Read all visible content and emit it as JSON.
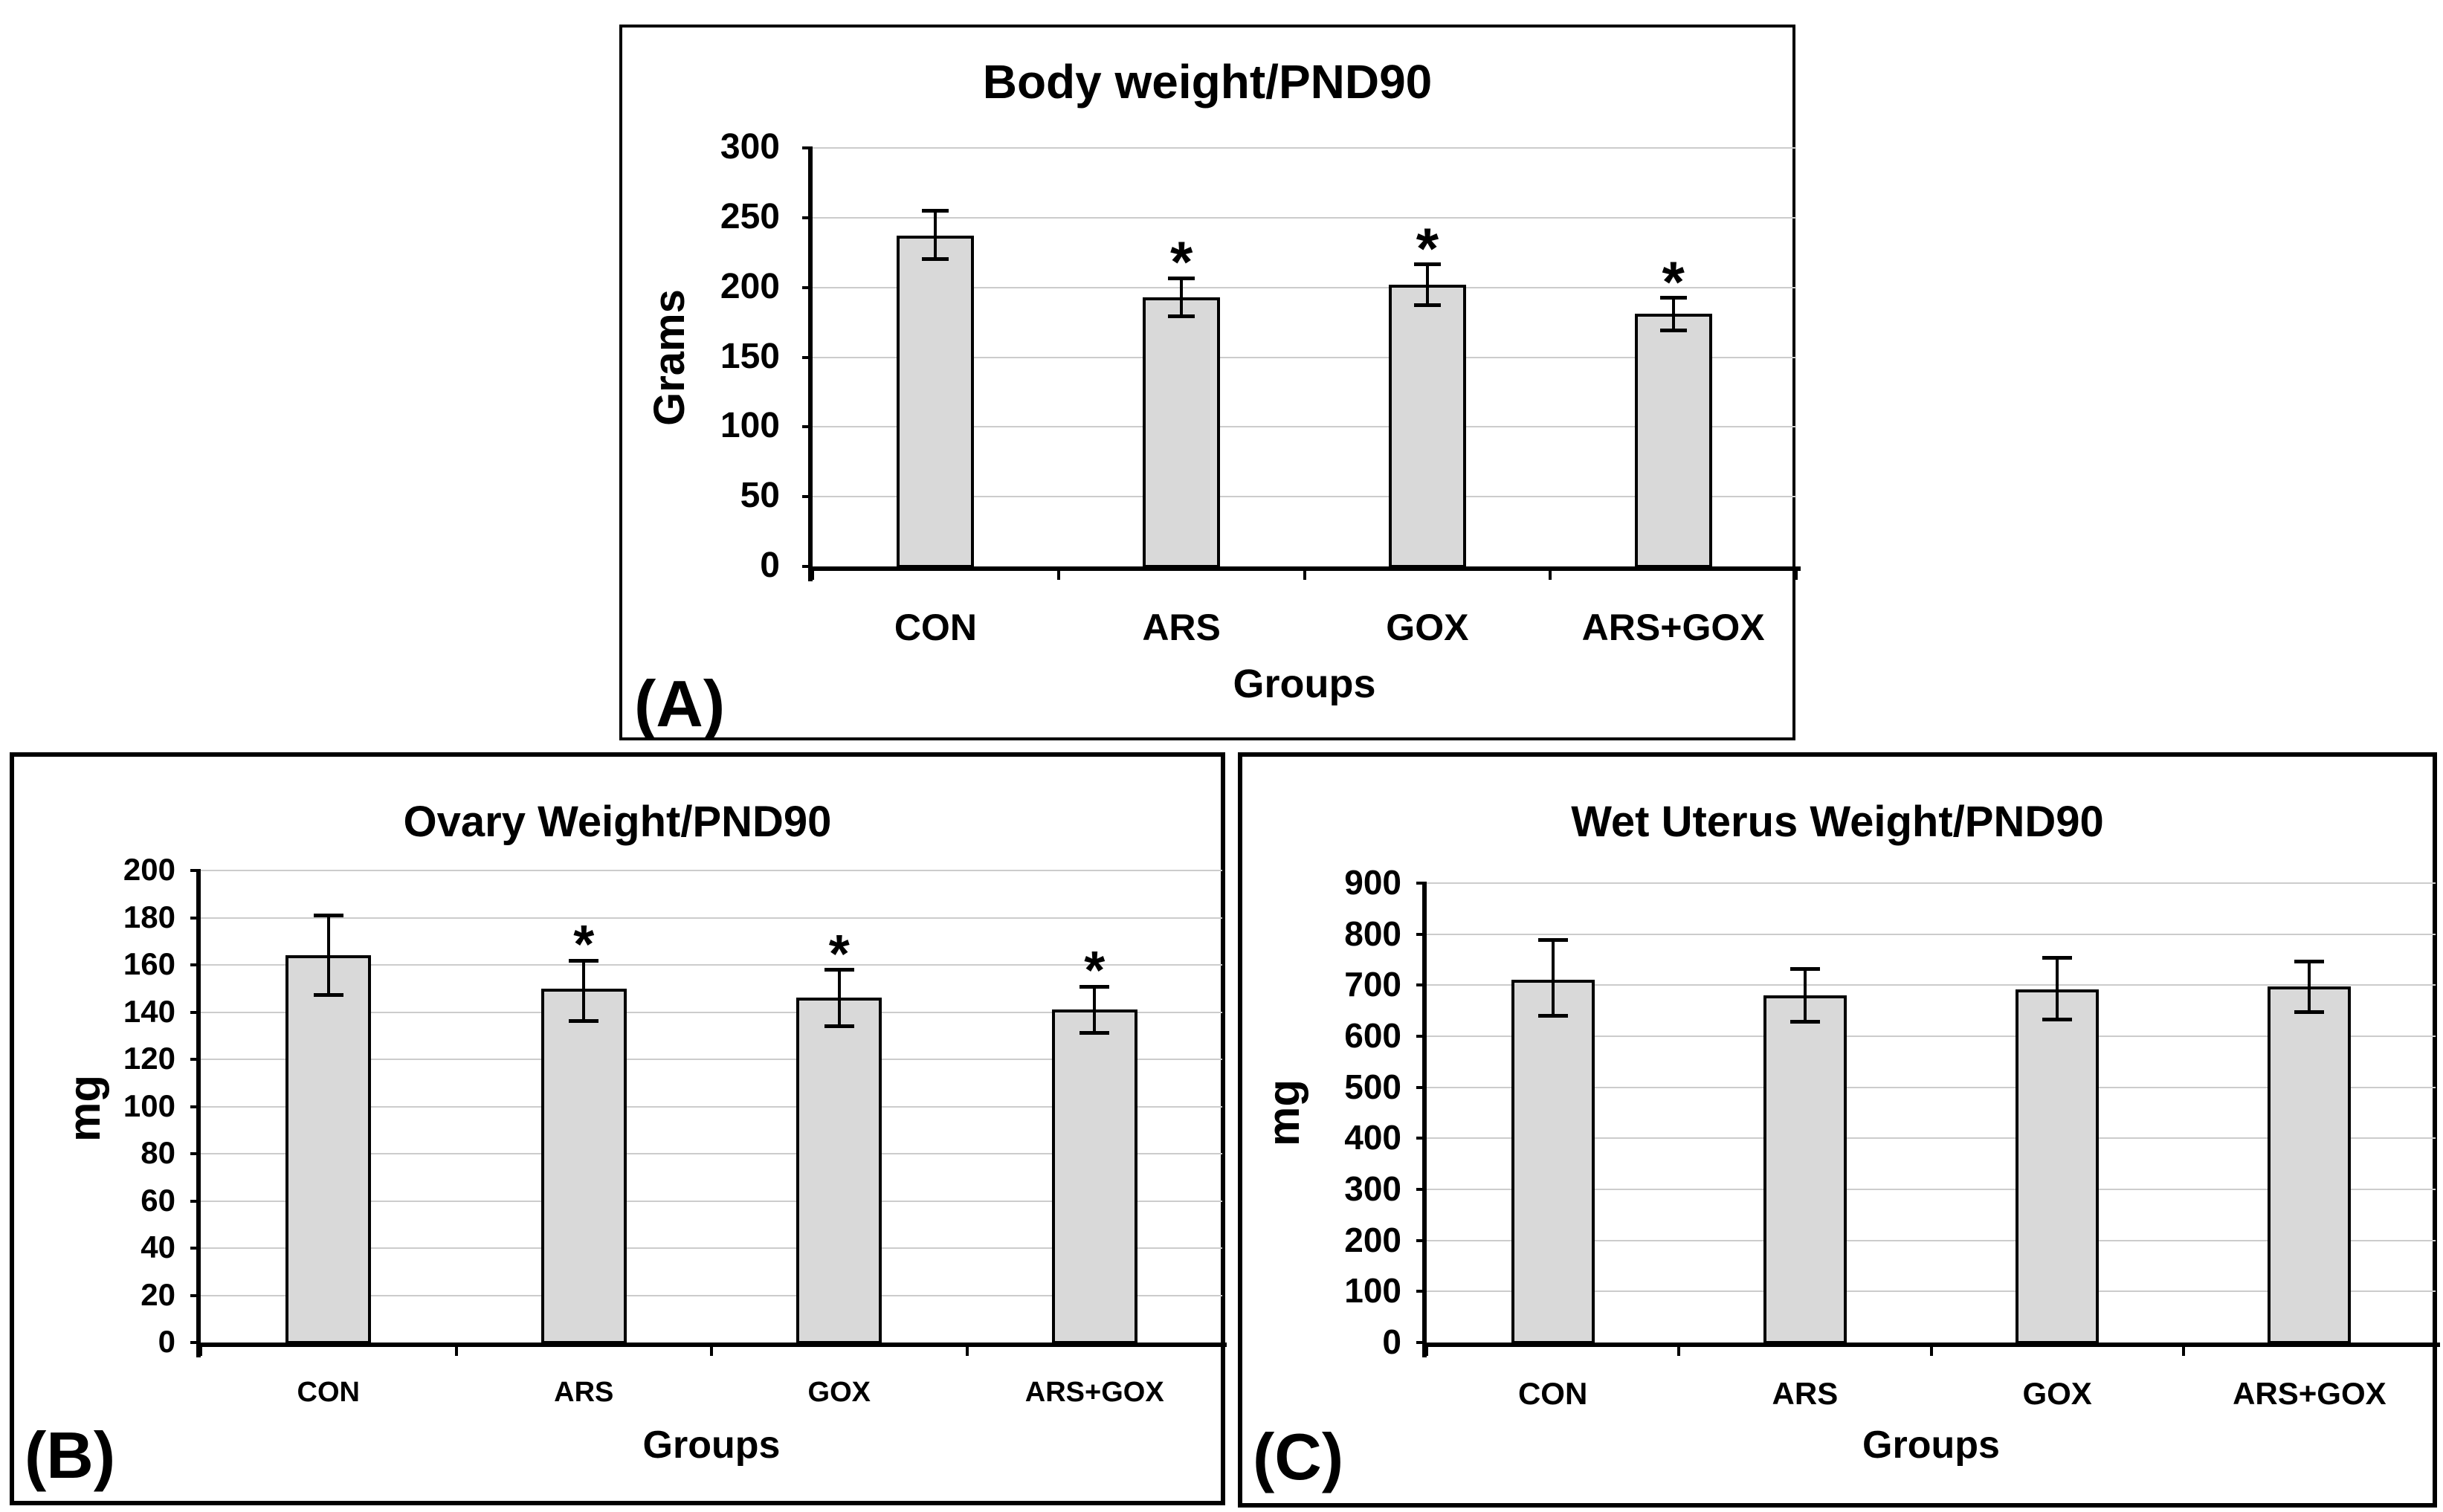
{
  "figure": {
    "background": "#ffffff",
    "panels": [
      "(A)",
      "(B)",
      "(C)"
    ]
  },
  "colors": {
    "bar_fill": "#d9d9d9",
    "bar_border": "#000000",
    "gridline": "#cccccc",
    "axis": "#000000",
    "text": "#000000"
  },
  "chart_data": [
    {
      "type": "bar",
      "panel_label": "(A)",
      "title": "Body weight/PND90",
      "ylabel": "Grams",
      "xlabel": "Groups",
      "ylim": [
        0,
        300
      ],
      "ytick_step": 50,
      "yticks": [
        0,
        50,
        100,
        150,
        200,
        250,
        300
      ],
      "categories": [
        "CON",
        "ARS",
        "GOX",
        "ARS+GOX"
      ],
      "values": [
        237,
        193,
        202,
        181
      ],
      "error_up": [
        18,
        14,
        15,
        12
      ],
      "error_down": [
        17,
        14,
        15,
        12
      ],
      "significance": [
        "",
        "*",
        "*",
        "*"
      ],
      "grid": true,
      "legend": "none"
    },
    {
      "type": "bar",
      "panel_label": "(B)",
      "title": "Ovary Weight/PND90",
      "ylabel": "mg",
      "xlabel": "Groups",
      "ylim": [
        0,
        200
      ],
      "ytick_step": 20,
      "yticks": [
        0,
        20,
        40,
        60,
        80,
        100,
        120,
        140,
        160,
        180,
        200
      ],
      "categories": [
        "CON",
        "ARS",
        "GOX",
        "ARS+GOX"
      ],
      "values": [
        164,
        150,
        146,
        141
      ],
      "error_up": [
        17,
        12,
        12,
        10
      ],
      "error_down": [
        17,
        14,
        12,
        10
      ],
      "significance": [
        "",
        "*",
        "*",
        "*"
      ],
      "grid": true,
      "legend": "none"
    },
    {
      "type": "bar",
      "panel_label": "(C)",
      "title": "Wet Uterus Weight/PND90",
      "ylabel": "mg",
      "xlabel": "Groups",
      "ylim": [
        0,
        900
      ],
      "ytick_step": 100,
      "yticks": [
        0,
        100,
        200,
        300,
        400,
        500,
        600,
        700,
        800,
        900
      ],
      "categories": [
        "CON",
        "ARS",
        "GOX",
        "ARS+GOX"
      ],
      "values": [
        710,
        680,
        692,
        697
      ],
      "error_up": [
        80,
        53,
        62,
        50
      ],
      "error_down": [
        70,
        52,
        60,
        51
      ],
      "significance": [
        "",
        "",
        "",
        ""
      ],
      "grid": true,
      "legend": "none"
    }
  ]
}
